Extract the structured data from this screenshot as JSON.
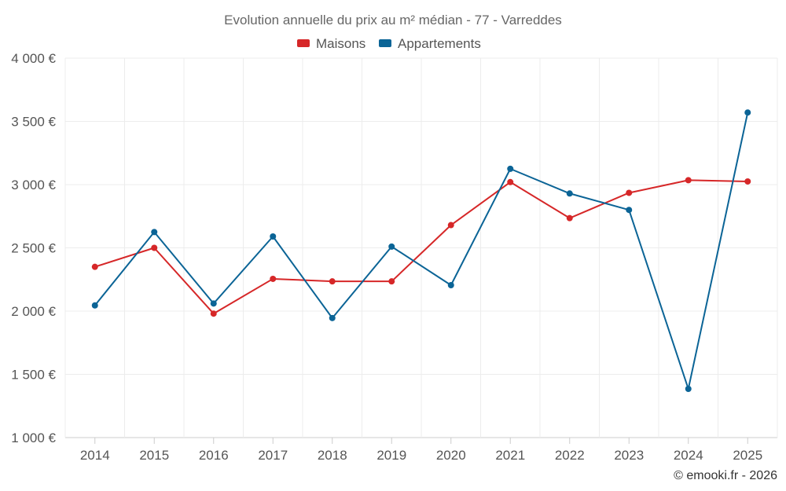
{
  "chart_data": {
    "type": "line",
    "title": "Evolution annuelle du prix au m² médian - 77 - Varreddes",
    "categories": [
      "2014",
      "2015",
      "2016",
      "2017",
      "2018",
      "2019",
      "2020",
      "2021",
      "2022",
      "2023",
      "2024",
      "2025"
    ],
    "series": [
      {
        "name": "Maisons",
        "color": "#d62728",
        "values": [
          2350,
          2500,
          1980,
          2255,
          2235,
          2235,
          2680,
          3020,
          2735,
          2935,
          3035,
          3025
        ]
      },
      {
        "name": "Appartements",
        "color": "#0b6496",
        "values": [
          2045,
          2625,
          2060,
          2590,
          1945,
          2510,
          2205,
          3125,
          2930,
          2800,
          1385,
          3570
        ]
      }
    ],
    "ylim": [
      1000,
      4000
    ],
    "yticks": [
      {
        "value": 1000,
        "label": "1 000 €"
      },
      {
        "value": 1500,
        "label": "1 500 €"
      },
      {
        "value": 2000,
        "label": "2 000 €"
      },
      {
        "value": 2500,
        "label": "2 500 €"
      },
      {
        "value": 3000,
        "label": "3 000 €"
      },
      {
        "value": 3500,
        "label": "3 500 €"
      },
      {
        "value": 4000,
        "label": "4 000 €"
      }
    ],
    "xlabel": "",
    "ylabel": "",
    "grid": true,
    "legend_position": "top-center"
  },
  "credit": "© emooki.fr - 2026"
}
